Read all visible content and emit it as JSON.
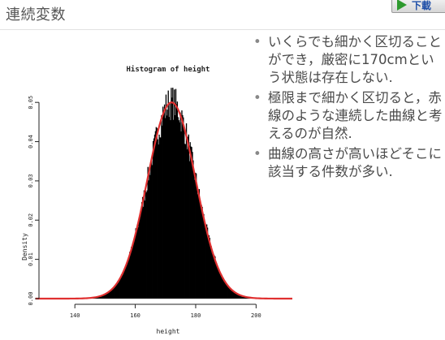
{
  "slide": {
    "title": "連続変数"
  },
  "download_button": {
    "label": "下載",
    "icon": "play-icon",
    "icon_color": "#2e9a2e"
  },
  "bullets": [
    {
      "text": "いくらでも細かく区切ることができ，厳密に170cmという状態は存在しない."
    },
    {
      "text": "極限まで細かく区切ると，赤線のような連続した曲線と考えるのが自然."
    },
    {
      "text": "曲線の高さが高いほどそこに該当する件数が多い."
    }
  ],
  "chart_data": {
    "type": "bar",
    "title": "Histogram of height",
    "xlabel": "height",
    "ylabel": "Density",
    "x_ticks": [
      "140",
      "160",
      "180",
      "200"
    ],
    "y_ticks": [
      "0.00",
      "0.01",
      "0.02",
      "0.03",
      "0.04",
      "0.05"
    ],
    "xlim": [
      130,
      212
    ],
    "ylim": [
      0,
      0.055
    ],
    "bar_color": "#000000",
    "curve_color": "#e03030",
    "distribution": {
      "shape": "normal",
      "mean": 172,
      "sd": 8,
      "peak_density": 0.05
    },
    "histogram_range": [
      142,
      205
    ]
  }
}
